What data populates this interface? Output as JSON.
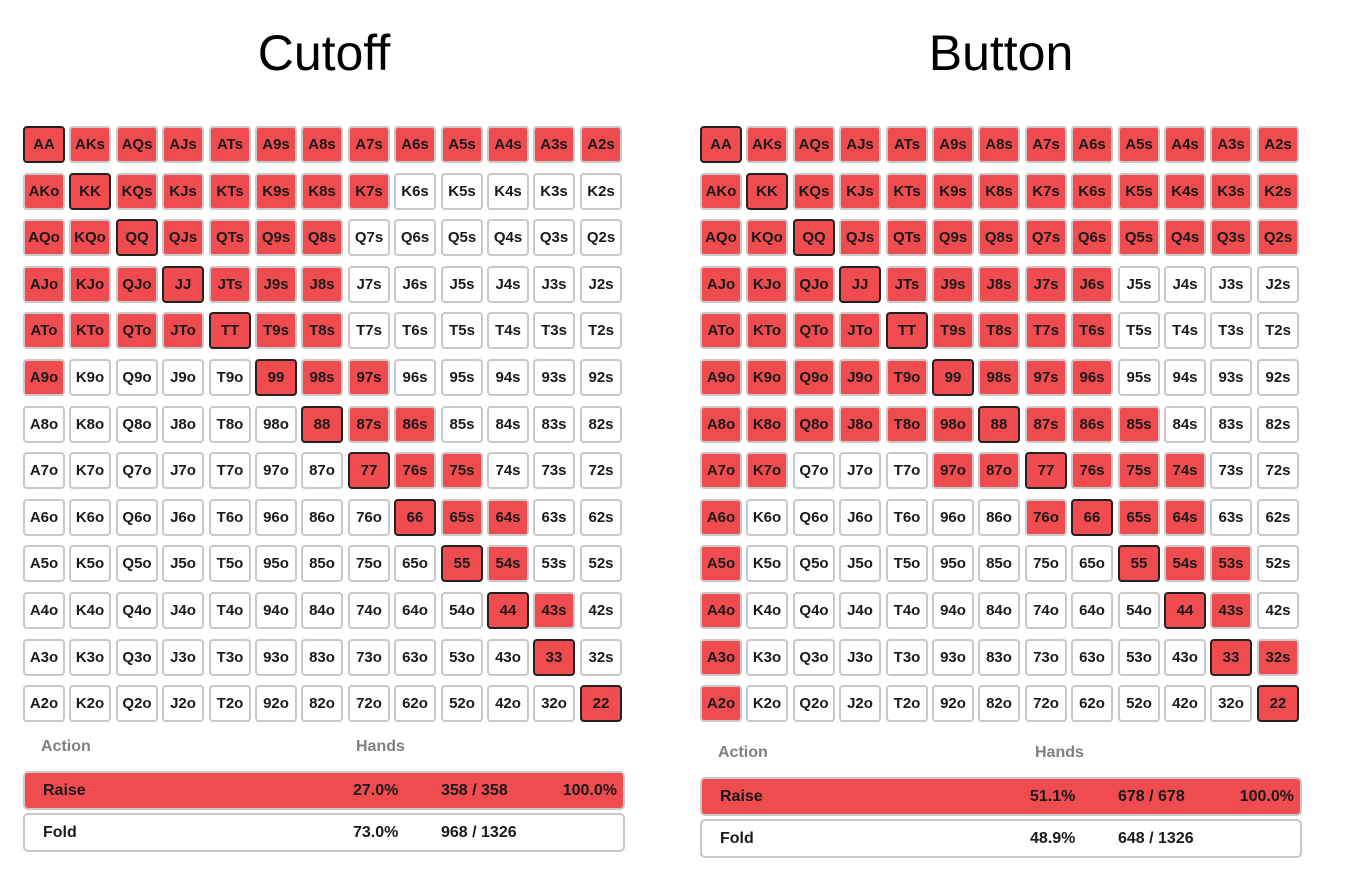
{
  "colors": {
    "raise": "#f04b4f",
    "fold": "#ffffff",
    "pair_border": "#222222",
    "cell_border": "#c8c8c8"
  },
  "headers": {
    "action": "Action",
    "hands": "Hands"
  },
  "panels": [
    {
      "title": "Cutoff",
      "raise_cells": [
        "AA",
        "AKs",
        "AQs",
        "AJs",
        "ATs",
        "A9s",
        "A8s",
        "A7s",
        "A6s",
        "A5s",
        "A4s",
        "A3s",
        "A2s",
        "AKo",
        "KK",
        "KQs",
        "KJs",
        "KTs",
        "K9s",
        "K8s",
        "K7s",
        "AQo",
        "KQo",
        "QQ",
        "QJs",
        "QTs",
        "Q9s",
        "Q8s",
        "AJo",
        "KJo",
        "QJo",
        "JJ",
        "JTs",
        "J9s",
        "J8s",
        "ATo",
        "KTo",
        "QTo",
        "JTo",
        "TT",
        "T9s",
        "T8s",
        "A9o",
        "99",
        "98s",
        "97s",
        "88",
        "87s",
        "86s",
        "77",
        "76s",
        "75s",
        "66",
        "65s",
        "64s",
        "55",
        "54s",
        "44",
        "43s",
        "33",
        "22"
      ],
      "rows": [
        {
          "name": "Raise",
          "pct": "27.0%",
          "combos": "358 / 358",
          "freq": "100.0%",
          "raise": true
        },
        {
          "name": "Fold",
          "pct": "73.0%",
          "combos": "968 / 1326",
          "freq": "",
          "raise": false
        }
      ]
    },
    {
      "title": "Button",
      "raise_cells": [
        "AA",
        "AKs",
        "AQs",
        "AJs",
        "ATs",
        "A9s",
        "A8s",
        "A7s",
        "A6s",
        "A5s",
        "A4s",
        "A3s",
        "A2s",
        "AKo",
        "KK",
        "KQs",
        "KJs",
        "KTs",
        "K9s",
        "K8s",
        "K7s",
        "K6s",
        "K5s",
        "K4s",
        "K3s",
        "K2s",
        "AQo",
        "KQo",
        "QQ",
        "QJs",
        "QTs",
        "Q9s",
        "Q8s",
        "Q7s",
        "Q6s",
        "Q5s",
        "Q4s",
        "Q3s",
        "Q2s",
        "AJo",
        "KJo",
        "QJo",
        "JJ",
        "JTs",
        "J9s",
        "J8s",
        "J7s",
        "J6s",
        "ATo",
        "KTo",
        "QTo",
        "JTo",
        "TT",
        "T9s",
        "T8s",
        "T7s",
        "T6s",
        "A9o",
        "K9o",
        "Q9o",
        "J9o",
        "T9o",
        "99",
        "98s",
        "97s",
        "96s",
        "A8o",
        "K8o",
        "Q8o",
        "J8o",
        "T8o",
        "98o",
        "88",
        "87s",
        "86s",
        "85s",
        "A7o",
        "K7o",
        "97o",
        "87o",
        "77",
        "76s",
        "75s",
        "74s",
        "A6o",
        "76o",
        "66",
        "65s",
        "64s",
        "A5o",
        "55",
        "54s",
        "53s",
        "A4o",
        "44",
        "43s",
        "A3o",
        "33",
        "32s",
        "A2o",
        "22"
      ],
      "rows": [
        {
          "name": "Raise",
          "pct": "51.1%",
          "combos": "678 / 678",
          "freq": "100.0%",
          "raise": true
        },
        {
          "name": "Fold",
          "pct": "48.9%",
          "combos": "648 / 1326",
          "freq": "",
          "raise": false
        }
      ]
    }
  ]
}
